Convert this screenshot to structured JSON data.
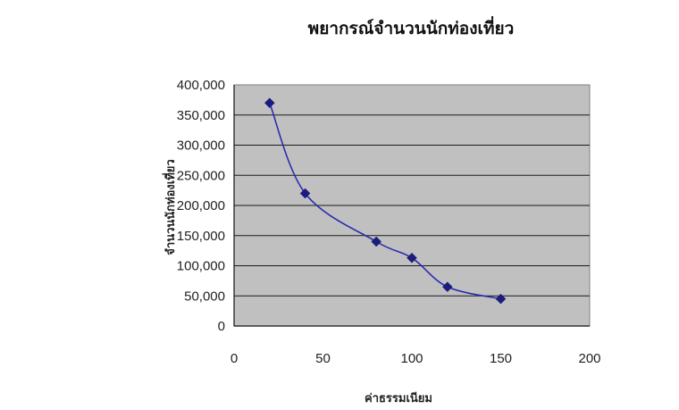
{
  "chart_data": {
    "type": "line",
    "title": "พยากรณ์จำนวนนักท่องเที่ยว",
    "xlabel": "ค่าธรรมเนียม",
    "ylabel": "จำนวนนักท่องเที่ยว",
    "x": [
      20,
      40,
      80,
      100,
      120,
      150
    ],
    "series": [
      {
        "values": [
          370000,
          220000,
          140000,
          113000,
          65000,
          45000
        ]
      }
    ],
    "xlim": [
      0,
      200
    ],
    "ylim": [
      0,
      400000
    ],
    "xticks": [
      "0",
      "50",
      "100",
      "150",
      "200"
    ],
    "yticks": [
      "0",
      "50,000",
      "100,000",
      "150,000",
      "200,000",
      "250,000",
      "300,000",
      "350,000",
      "400,000"
    ],
    "grid": true,
    "plot_background": "#c0c0c0",
    "line_color": "#2b2bb0",
    "marker_color": "#1c1c7c",
    "marker": "diamond",
    "legend": "none"
  }
}
